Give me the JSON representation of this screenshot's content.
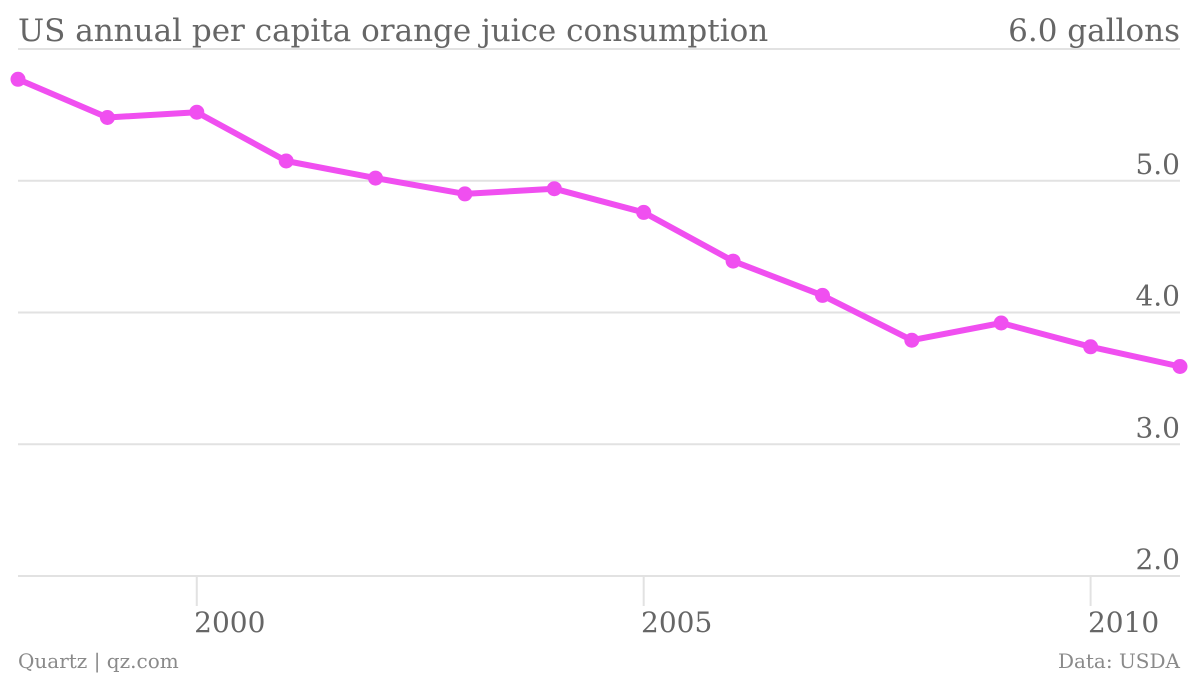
{
  "chart_data": {
    "type": "line",
    "title": "US annual per capita orange juice consumption",
    "x": [
      1998,
      1999,
      2000,
      2001,
      2002,
      2003,
      2004,
      2005,
      2006,
      2007,
      2008,
      2009,
      2010,
      2011
    ],
    "series": [
      {
        "values": [
          5.77,
          5.48,
          5.52,
          5.15,
          5.02,
          4.9,
          4.94,
          4.76,
          4.39,
          4.13,
          3.79,
          3.92,
          3.74,
          3.59
        ],
        "color": "#f04ff0"
      }
    ],
    "y_ticks": [
      {
        "value": 6.0,
        "label": "6.0 gallons"
      },
      {
        "value": 5.0,
        "label": "5.0"
      },
      {
        "value": 4.0,
        "label": "4.0"
      },
      {
        "value": 3.0,
        "label": "3.0"
      },
      {
        "value": 2.0,
        "label": "2.0"
      }
    ],
    "x_ticks": [
      {
        "value": 2000,
        "label": "2000"
      },
      {
        "value": 2005,
        "label": "2005"
      },
      {
        "value": 2010,
        "label": "2010"
      }
    ],
    "xlim": [
      1998,
      2011
    ],
    "ylim": [
      2.0,
      6.0
    ],
    "xlabel": "",
    "ylabel": "",
    "grid": true,
    "legend": "none"
  },
  "footer": {
    "source_left": "Quartz | qz.com",
    "source_right": "Data: USDA"
  }
}
